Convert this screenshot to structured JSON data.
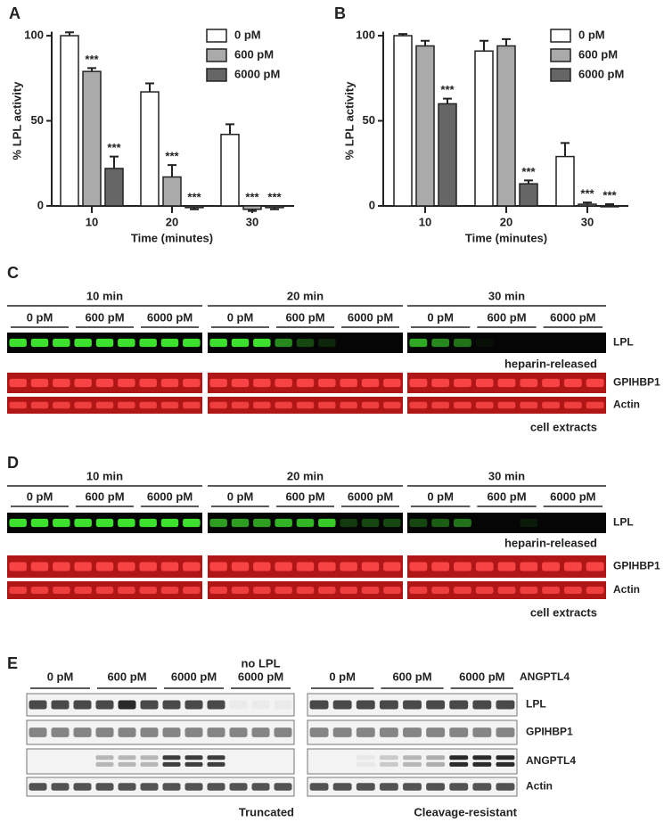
{
  "chart_data": [
    {
      "type": "bar",
      "panel": "A",
      "ylabel": "% LPL activity",
      "xlabel": "Time (minutes)",
      "categories": [
        "10",
        "20",
        "30"
      ],
      "series": [
        {
          "name": "0 pM",
          "color": "#ffffff",
          "values": [
            100,
            67,
            42
          ],
          "errors": [
            2,
            5,
            6
          ],
          "significance": [
            null,
            null,
            null
          ]
        },
        {
          "name": "600 pM",
          "color": "#aaaaaa",
          "values": [
            79,
            17,
            -2
          ],
          "errors": [
            2,
            7,
            1
          ],
          "significance": [
            "***",
            "***",
            "***"
          ]
        },
        {
          "name": "6000 pM",
          "color": "#666666",
          "values": [
            22,
            -1,
            -1
          ],
          "errors": [
            7,
            1,
            1
          ],
          "significance": [
            "***",
            "***",
            "***"
          ]
        }
      ],
      "ylim": [
        -5,
        105
      ],
      "yticks": [
        0,
        50,
        100
      ],
      "legend": "upper right"
    },
    {
      "type": "bar",
      "panel": "B",
      "ylabel": "% LPL activity",
      "xlabel": "Time (minutes)",
      "categories": [
        "10",
        "20",
        "30"
      ],
      "series": [
        {
          "name": "0 pM",
          "color": "#ffffff",
          "values": [
            100,
            91,
            29
          ],
          "errors": [
            1,
            6,
            8
          ],
          "significance": [
            null,
            null,
            null
          ]
        },
        {
          "name": "600 pM",
          "color": "#aaaaaa",
          "values": [
            94,
            94,
            1
          ],
          "errors": [
            3,
            4,
            1
          ],
          "significance": [
            null,
            null,
            "***"
          ]
        },
        {
          "name": "6000 pM",
          "color": "#666666",
          "values": [
            60,
            13,
            0
          ],
          "errors": [
            3,
            2,
            1
          ],
          "significance": [
            "***",
            "***",
            "***"
          ]
        }
      ],
      "ylim": [
        -5,
        105
      ],
      "yticks": [
        0,
        50,
        100
      ],
      "legend": "upper right"
    }
  ],
  "blots": [
    {
      "panel": "C",
      "groups": [
        {
          "header": "10 min",
          "lanes": [
            "0 pM",
            "600 pM",
            "6000 pM"
          ]
        },
        {
          "header": "20 min",
          "lanes": [
            "0 pM",
            "600 pM",
            "6000 pM"
          ]
        },
        {
          "header": "30 min",
          "lanes": [
            "0 pM",
            "600 pM",
            "6000 pM"
          ]
        }
      ],
      "rows": [
        "LPL",
        "GPIHBP1",
        "Actin"
      ],
      "notes": [
        "heparin-released",
        "cell extracts"
      ]
    },
    {
      "panel": "D",
      "groups": [
        {
          "header": "10 min",
          "lanes": [
            "0 pM",
            "600 pM",
            "6000 pM"
          ]
        },
        {
          "header": "20 min",
          "lanes": [
            "0 pM",
            "600 pM",
            "6000 pM"
          ]
        },
        {
          "header": "30 min",
          "lanes": [
            "0 pM",
            "600 pM",
            "6000 pM"
          ]
        }
      ],
      "rows": [
        "LPL",
        "GPIHBP1",
        "Actin"
      ],
      "notes": [
        "heparin-released",
        "cell extracts"
      ]
    },
    {
      "panel": "E",
      "groups": [
        {
          "lanes": [
            "0 pM",
            "600 pM",
            "6000 pM",
            "6000 pM"
          ],
          "top_note": "no LPL",
          "footer": "Truncated"
        },
        {
          "lanes": [
            "0 pM",
            "600 pM",
            "6000 pM"
          ],
          "footer": "Cleavage-resistant"
        }
      ],
      "lane_title": "ANGPTL4",
      "rows": [
        "LPL",
        "GPIHBP1",
        "ANGPTL4",
        "Actin"
      ]
    }
  ]
}
